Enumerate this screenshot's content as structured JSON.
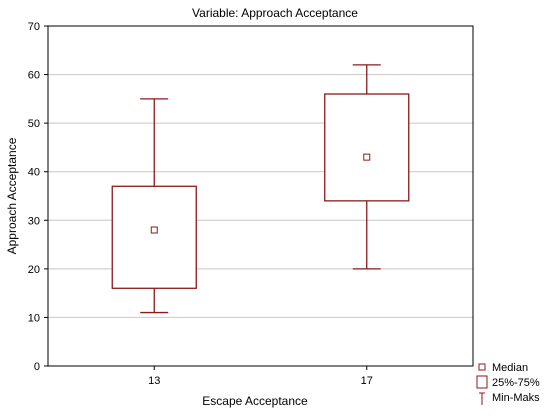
{
  "chart_data": {
    "type": "boxplot",
    "title": "Variable:  Approach Acceptance",
    "xlabel": "Escape Acceptance",
    "ylabel": "Approach Acceptance",
    "ylim": [
      0,
      70
    ],
    "yticks": [
      0,
      10,
      20,
      30,
      40,
      50,
      60,
      70
    ],
    "grid": true,
    "legend_position": "bottom-right",
    "color": "#8B1A1A",
    "categories": [
      "13",
      "17"
    ],
    "boxes": [
      {
        "category": "13",
        "min": 11,
        "q1": 16,
        "median": 28,
        "q3": 37,
        "max": 55
      },
      {
        "category": "17",
        "min": 20,
        "q1": 34,
        "median": 43,
        "q3": 56,
        "max": 62
      }
    ],
    "legend": [
      {
        "key": "median",
        "label": "Median"
      },
      {
        "key": "box",
        "label": "25%-75%"
      },
      {
        "key": "whisker",
        "label": "Min-Maks"
      }
    ]
  }
}
